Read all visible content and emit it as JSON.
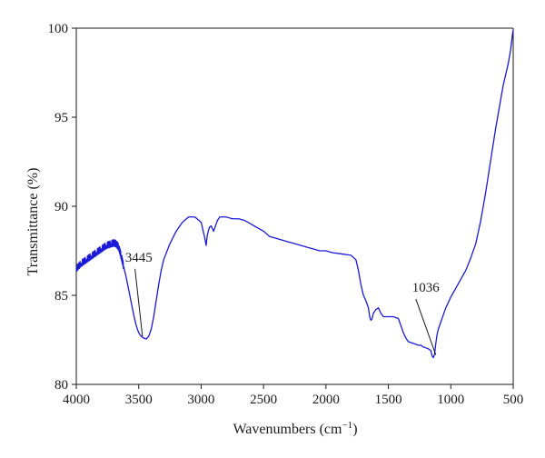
{
  "chart_data": {
    "type": "line",
    "xlabel": "Wavenumbers (cm",
    "xlabel_sup": "−1",
    "xlabel_close": ")",
    "ylabel": "Transmittance (%)",
    "xlim": [
      4000,
      500
    ],
    "ylim": [
      80,
      100
    ],
    "x_reversed": true,
    "grid": false,
    "xticks": [
      4000,
      3500,
      3000,
      2500,
      2000,
      1500,
      1000,
      500
    ],
    "yticks": [
      80,
      85,
      90,
      95,
      100
    ],
    "colors": {
      "line": "#1a1ad6",
      "axis": "#1a1a1a",
      "annotation": "#1a1a1a"
    },
    "series": [
      {
        "values_x": [
          4000,
          3960,
          3920,
          3880,
          3840,
          3800,
          3760,
          3720,
          3700,
          3680,
          3660,
          3640,
          3620,
          3600,
          3580,
          3560,
          3540,
          3520,
          3500,
          3480,
          3460,
          3440,
          3420,
          3400,
          3380,
          3360,
          3340,
          3320,
          3300,
          3250,
          3200,
          3150,
          3100,
          3050,
          3000,
          2990,
          2970,
          2960,
          2950,
          2935,
          2920,
          2900,
          2870,
          2850,
          2820,
          2800,
          2750,
          2700,
          2650,
          2600,
          2550,
          2500,
          2450,
          2400,
          2350,
          2300,
          2250,
          2200,
          2150,
          2100,
          2050,
          2000,
          1950,
          1900,
          1850,
          1800,
          1760,
          1740,
          1720,
          1700,
          1680,
          1660,
          1650,
          1640,
          1630,
          1620,
          1600,
          1580,
          1560,
          1540,
          1520,
          1500,
          1460,
          1420,
          1400,
          1380,
          1360,
          1340,
          1300,
          1260,
          1240,
          1220,
          1200,
          1180,
          1160,
          1150,
          1140,
          1130,
          1120,
          1110,
          1100,
          1080,
          1060,
          1040,
          1000,
          960,
          920,
          880,
          840,
          800,
          760,
          720,
          680,
          640,
          600,
          580,
          560,
          540,
          520,
          510,
          505,
          500
        ],
        "values_y": [
          86.5,
          86.8,
          87.0,
          87.2,
          87.4,
          87.6,
          87.8,
          87.9,
          87.95,
          87.9,
          87.7,
          87.2,
          86.6,
          86.0,
          85.3,
          84.6,
          83.9,
          83.3,
          82.9,
          82.7,
          82.6,
          82.55,
          82.7,
          83.1,
          83.8,
          84.7,
          85.6,
          86.4,
          87.0,
          87.9,
          88.6,
          89.1,
          89.4,
          89.4,
          89.1,
          88.8,
          88.2,
          87.8,
          88.4,
          88.8,
          88.9,
          88.6,
          89.2,
          89.4,
          89.4,
          89.4,
          89.3,
          89.3,
          89.2,
          89.0,
          88.8,
          88.6,
          88.3,
          88.2,
          88.1,
          88.0,
          87.9,
          87.8,
          87.7,
          87.6,
          87.5,
          87.5,
          87.4,
          87.35,
          87.3,
          87.25,
          87.0,
          86.4,
          85.6,
          85.0,
          84.7,
          84.3,
          83.8,
          83.6,
          83.7,
          84.0,
          84.2,
          84.3,
          84.0,
          83.8,
          83.8,
          83.8,
          83.8,
          83.7,
          83.3,
          82.9,
          82.6,
          82.4,
          82.3,
          82.2,
          82.2,
          82.1,
          82.05,
          82.0,
          81.9,
          81.6,
          81.5,
          81.7,
          82.3,
          82.8,
          83.1,
          83.5,
          83.9,
          84.3,
          84.9,
          85.4,
          85.9,
          86.4,
          87.1,
          87.9,
          89.2,
          90.8,
          92.6,
          94.4,
          96.0,
          96.8,
          97.4,
          98.0,
          98.8,
          99.4,
          99.7,
          99.9
        ]
      }
    ],
    "annotations": [
      {
        "label": "3445",
        "x": 3470,
        "y": 82.55,
        "label_x": 3500,
        "label_y": 86.9
      },
      {
        "label": "1036",
        "x": 1120,
        "y": 81.5,
        "label_x": 1200,
        "label_y": 85.2
      }
    ]
  }
}
